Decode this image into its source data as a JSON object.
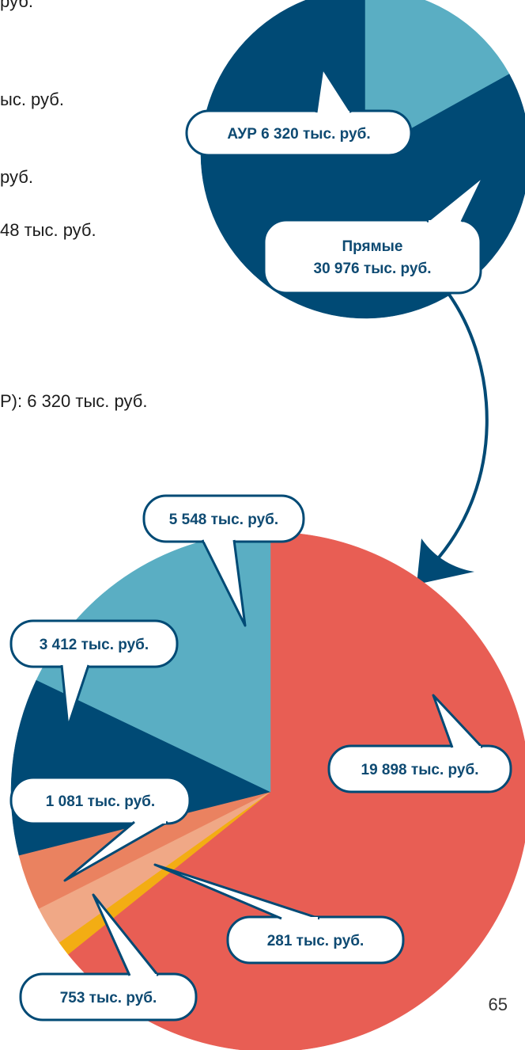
{
  "text_fragments": [
    "руб.",
    "ыс. руб.",
    "руб.",
    "48 тыс. руб.",
    "Р): 6 320 тыс. руб."
  ],
  "page_number": "65",
  "colors": {
    "dark_blue": "#004a75",
    "light_blue": "#5aaec3",
    "coral": "#e85e54",
    "orange": "#ea8260",
    "peach": "#f0a886",
    "yellow": "#f3ad13",
    "callout_border": "#004a75",
    "callout_text": "#0e4a72"
  },
  "chart_data": [
    {
      "type": "pie",
      "title": "",
      "slices": [
        {
          "label": "Прямые 30 976 тыс. руб.",
          "value": 30976,
          "color": "#004a75"
        },
        {
          "label": "АУР 6 320 тыс. руб.",
          "value": 6320,
          "color": "#5aaec3"
        }
      ],
      "annotations": [
        {
          "lines": [
            "АУР 6 320 тыс. руб."
          ]
        },
        {
          "lines": [
            "Прямые",
            "30 976 тыс. руб."
          ]
        }
      ]
    },
    {
      "type": "pie",
      "title": "",
      "slices": [
        {
          "label": "19 898 тыс. руб.",
          "value": 19898,
          "color": "#e85e54"
        },
        {
          "label": "281 тыс. руб.",
          "value": 281,
          "color": "#f3ad13"
        },
        {
          "label": "753 тыс. руб.",
          "value": 753,
          "color": "#f0a886"
        },
        {
          "label": "1 081 тыс. руб.",
          "value": 1081,
          "color": "#ea8260"
        },
        {
          "label": "3 412 тыс. руб.",
          "value": 3412,
          "color": "#004a75"
        },
        {
          "label": "5 548 тыс. руб.",
          "value": 5548,
          "color": "#5aaec3"
        }
      ],
      "annotations": [
        {
          "lines": [
            "5 548 тыс. руб."
          ]
        },
        {
          "lines": [
            "3 412 тыс. руб."
          ]
        },
        {
          "lines": [
            "1 081 тыс. руб."
          ]
        },
        {
          "lines": [
            "19 898 тыс. руб."
          ]
        },
        {
          "lines": [
            "281 тыс. руб."
          ]
        },
        {
          "lines": [
            "753 тыс. руб."
          ]
        }
      ]
    }
  ]
}
